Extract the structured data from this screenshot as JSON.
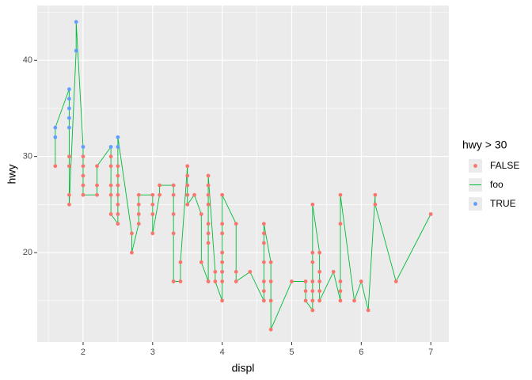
{
  "chart_data": {
    "type": "scatter",
    "x_label": "displ",
    "y_label": "hwy",
    "legend_title": "hwy > 30",
    "xlim": [
      1.34,
      7.26
    ],
    "ylim": [
      10.7,
      45.7
    ],
    "xticks": [
      2,
      3,
      4,
      5,
      6,
      7
    ],
    "yticks": [
      20,
      30,
      40
    ],
    "x_minor_ticks": [
      1.5,
      2.5,
      3.5,
      4.5,
      5.5,
      6.5
    ],
    "y_minor_ticks": [
      15,
      25,
      35,
      45
    ],
    "grid": true,
    "legend_position": "right",
    "series": [
      {
        "name": "FALSE",
        "color": "#F8766D",
        "kind": "points",
        "x": [
          1.6,
          1.8,
          1.8,
          1.8,
          1.8,
          2,
          2,
          2,
          2,
          2,
          2.2,
          2.2,
          2.2,
          2.4,
          2.4,
          2.4,
          2.4,
          2.4,
          2.5,
          2.5,
          2.5,
          2.5,
          2.5,
          2.5,
          2.5,
          2.7,
          2.7,
          2.8,
          2.8,
          2.8,
          2.8,
          3,
          3,
          3,
          3,
          3.1,
          3.1,
          3.3,
          3.3,
          3.3,
          3.3,
          3.3,
          3.4,
          3.4,
          3.5,
          3.5,
          3.5,
          3.5,
          3.5,
          3.6,
          3.7,
          3.7,
          3.8,
          3.8,
          3.8,
          3.8,
          3.8,
          3.8,
          3.8,
          3.8,
          3.9,
          3.9,
          4,
          4,
          4,
          4,
          4,
          4,
          4,
          4,
          4.2,
          4.2,
          4.2,
          4.4,
          4.6,
          4.6,
          4.6,
          4.6,
          4.6,
          4.6,
          4.6,
          4.7,
          4.7,
          4.7,
          4.7,
          5,
          5.2,
          5.2,
          5.2,
          5.3,
          5.3,
          5.3,
          5.3,
          5.3,
          5.3,
          5.3,
          5.4,
          5.4,
          5.4,
          5.4,
          5.4,
          5.6,
          5.7,
          5.7,
          5.7,
          5.7,
          5.7,
          5.9,
          6,
          6.1,
          6.2,
          6.2,
          6.5,
          7
        ],
        "y": [
          29,
          30,
          29,
          26,
          25,
          30,
          29,
          28,
          27,
          26,
          26,
          27,
          29,
          30,
          29,
          27,
          26,
          24,
          23,
          24,
          25,
          26,
          27,
          28,
          29,
          22,
          20,
          23,
          24,
          25,
          26,
          26,
          25,
          24,
          22,
          26,
          27,
          27,
          26,
          24,
          22,
          17,
          17,
          19,
          29,
          28,
          27,
          26,
          25,
          26,
          24,
          19,
          17,
          21,
          22,
          23,
          25,
          26,
          27,
          28,
          18,
          17,
          15,
          17,
          18,
          19,
          20,
          22,
          23,
          26,
          23,
          18,
          17,
          18,
          15,
          16,
          17,
          19,
          21,
          22,
          23,
          19,
          17,
          15,
          12,
          17,
          17,
          16,
          15,
          14,
          15,
          16,
          17,
          19,
          20,
          25,
          20,
          18,
          17,
          16,
          15,
          18,
          15,
          16,
          17,
          23,
          26,
          15,
          17,
          14,
          26,
          25,
          17,
          24
        ]
      },
      {
        "name": "foo",
        "color": "#00BA38",
        "kind": "line",
        "x": [
          1.6,
          1.6,
          1.6,
          1.8,
          1.8,
          1.8,
          1.8,
          1.8,
          1.8,
          1.8,
          1.8,
          1.8,
          1.9,
          1.9,
          2,
          2,
          2,
          2,
          2,
          2,
          2.2,
          2.2,
          2.2,
          2.4,
          2.4,
          2.4,
          2.4,
          2.4,
          2.4,
          2.5,
          2.5,
          2.5,
          2.5,
          2.5,
          2.5,
          2.5,
          2.5,
          2.5,
          2.7,
          2.7,
          2.8,
          2.8,
          2.8,
          2.8,
          3,
          3,
          3,
          3,
          3.1,
          3.1,
          3.3,
          3.3,
          3.3,
          3.3,
          3.3,
          3.4,
          3.4,
          3.5,
          3.5,
          3.5,
          3.5,
          3.5,
          3.6,
          3.7,
          3.7,
          3.8,
          3.8,
          3.8,
          3.8,
          3.8,
          3.8,
          3.8,
          3.8,
          3.9,
          3.9,
          4,
          4,
          4,
          4,
          4,
          4,
          4,
          4,
          4.2,
          4.2,
          4.2,
          4.4,
          4.6,
          4.6,
          4.6,
          4.6,
          4.6,
          4.6,
          4.6,
          4.7,
          4.7,
          4.7,
          4.7,
          5,
          5.2,
          5.2,
          5.2,
          5.3,
          5.3,
          5.3,
          5.3,
          5.3,
          5.3,
          5.3,
          5.4,
          5.4,
          5.4,
          5.4,
          5.4,
          5.6,
          5.7,
          5.7,
          5.7,
          5.7,
          5.7,
          5.9,
          6,
          6.1,
          6.2,
          6.2,
          6.5,
          7
        ],
        "y": [
          29,
          32,
          33,
          37,
          36,
          35,
          34,
          33,
          30,
          29,
          26,
          25,
          41,
          44,
          31,
          30,
          29,
          28,
          27,
          26,
          26,
          27,
          29,
          31,
          30,
          29,
          27,
          26,
          24,
          23,
          24,
          25,
          26,
          27,
          28,
          29,
          31,
          32,
          22,
          20,
          23,
          24,
          25,
          26,
          26,
          25,
          24,
          22,
          26,
          27,
          27,
          26,
          24,
          22,
          17,
          17,
          19,
          29,
          28,
          27,
          26,
          25,
          26,
          24,
          19,
          17,
          21,
          22,
          23,
          25,
          26,
          27,
          28,
          18,
          17,
          15,
          17,
          18,
          19,
          20,
          22,
          23,
          26,
          23,
          18,
          17,
          18,
          15,
          16,
          17,
          19,
          21,
          22,
          23,
          19,
          17,
          15,
          12,
          17,
          17,
          16,
          15,
          14,
          15,
          16,
          17,
          19,
          20,
          25,
          20,
          18,
          17,
          16,
          15,
          18,
          15,
          16,
          17,
          23,
          26,
          15,
          17,
          14,
          26,
          25,
          17,
          24
        ]
      },
      {
        "name": "TRUE",
        "color": "#619CFF",
        "kind": "points",
        "x": [
          1.6,
          1.6,
          1.8,
          1.8,
          1.8,
          1.8,
          1.8,
          1.9,
          1.9,
          2,
          2.4,
          2.5,
          2.5
        ],
        "y": [
          32,
          33,
          33,
          34,
          35,
          36,
          37,
          41,
          44,
          31,
          31,
          31,
          32
        ]
      }
    ]
  }
}
